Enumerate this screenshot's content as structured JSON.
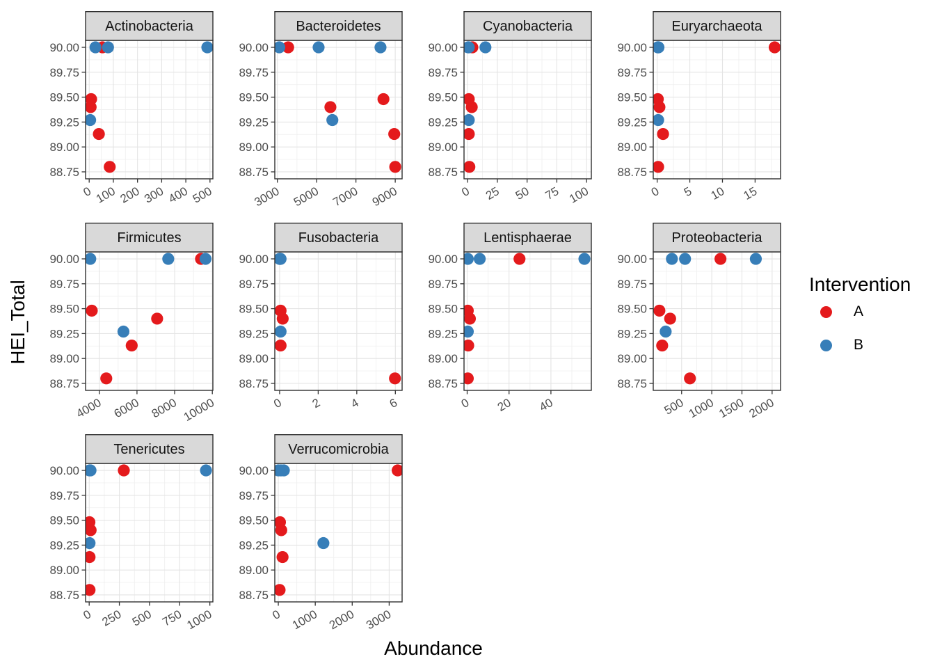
{
  "figure": {
    "colors": {
      "A": "#E41A1C",
      "B": "#377EB8",
      "strip_bg": "#D9D9D9",
      "strip_border": "#2F2F2F",
      "panel_bg": "#FFFFFF",
      "panel_border": "#2F2F2F",
      "grid_major": "#E4E4E4",
      "grid_minor": "#F0F0F0",
      "tick_mark": "#333333",
      "tick_text": "#4D4D4D",
      "title_text": "#000000"
    }
  },
  "chart_data": {
    "type": "scatter",
    "x_label": "Abundance",
    "y_label": "HEI_Total",
    "grid": "on",
    "legend": {
      "title": "Intervention",
      "position": "right",
      "entries": [
        {
          "label": "A",
          "color": "#E41A1C"
        },
        {
          "label": "B",
          "color": "#377EB8"
        }
      ]
    },
    "y_ticks": [
      90.0,
      89.75,
      89.5,
      89.25,
      89.0,
      88.75
    ],
    "y_domain": [
      88.68,
      90.07
    ],
    "facets": [
      {
        "name": "Actinobacteria",
        "x_ticks": [
          0,
          100,
          200,
          300,
          400,
          500
        ],
        "x_domain": [
          -15,
          512
        ],
        "points": [
          {
            "g": "A",
            "x": 55,
            "y": 90.0
          },
          {
            "g": "A",
            "x": 8,
            "y": 89.48
          },
          {
            "g": "A",
            "x": 6,
            "y": 89.4
          },
          {
            "g": "A",
            "x": 40,
            "y": 89.13
          },
          {
            "g": "A",
            "x": 85,
            "y": 88.8
          },
          {
            "g": "B",
            "x": 26,
            "y": 90.0
          },
          {
            "g": "B",
            "x": 78,
            "y": 90.0
          },
          {
            "g": "B",
            "x": 489,
            "y": 90.0
          },
          {
            "g": "B",
            "x": 4,
            "y": 89.27
          }
        ]
      },
      {
        "name": "Bacteroidetes",
        "x_ticks": [
          3000,
          5000,
          7000,
          9000
        ],
        "x_domain": [
          2870,
          9350
        ],
        "points": [
          {
            "g": "A",
            "x": 3550,
            "y": 90.0
          },
          {
            "g": "A",
            "x": 8400,
            "y": 89.48
          },
          {
            "g": "A",
            "x": 5700,
            "y": 89.4
          },
          {
            "g": "A",
            "x": 8950,
            "y": 89.13
          },
          {
            "g": "A",
            "x": 9000,
            "y": 88.8
          },
          {
            "g": "B",
            "x": 3100,
            "y": 90.0
          },
          {
            "g": "B",
            "x": 5100,
            "y": 90.0
          },
          {
            "g": "B",
            "x": 8250,
            "y": 90.0
          },
          {
            "g": "B",
            "x": 5800,
            "y": 89.27
          }
        ]
      },
      {
        "name": "Cyanobacteria",
        "x_ticks": [
          0,
          25,
          50,
          75,
          100
        ],
        "x_domain": [
          -3,
          104
        ],
        "points": [
          {
            "g": "A",
            "x": 4,
            "y": 90.0
          },
          {
            "g": "A",
            "x": 1,
            "y": 89.48
          },
          {
            "g": "A",
            "x": 3.5,
            "y": 89.4
          },
          {
            "g": "A",
            "x": 1,
            "y": 89.13
          },
          {
            "g": "A",
            "x": 1.5,
            "y": 88.8
          },
          {
            "g": "B",
            "x": 0.5,
            "y": 90.0
          },
          {
            "g": "B",
            "x": 1,
            "y": 90.0
          },
          {
            "g": "B",
            "x": 15,
            "y": 90.0
          },
          {
            "g": "B",
            "x": 1,
            "y": 89.27
          }
        ]
      },
      {
        "name": "Euryarchaeota",
        "x_ticks": [
          0,
          5,
          10,
          15
        ],
        "x_domain": [
          -0.6,
          18.9
        ],
        "points": [
          {
            "g": "A",
            "x": 18,
            "y": 90.0
          },
          {
            "g": "A",
            "x": 0.1,
            "y": 89.48
          },
          {
            "g": "A",
            "x": 0.35,
            "y": 89.4
          },
          {
            "g": "A",
            "x": 0.9,
            "y": 89.13
          },
          {
            "g": "A",
            "x": 0.15,
            "y": 88.8
          },
          {
            "g": "B",
            "x": 0.1,
            "y": 90.0
          },
          {
            "g": "B",
            "x": 0.15,
            "y": 90.0
          },
          {
            "g": "B",
            "x": 0.2,
            "y": 90.0
          },
          {
            "g": "B",
            "x": 0.15,
            "y": 89.27
          }
        ]
      },
      {
        "name": "Firmicutes",
        "x_ticks": [
          4000,
          6000,
          8000,
          10000
        ],
        "x_domain": [
          3270,
          10030
        ],
        "points": [
          {
            "g": "A",
            "x": 9400,
            "y": 90.0
          },
          {
            "g": "A",
            "x": 3600,
            "y": 89.48
          },
          {
            "g": "A",
            "x": 7070,
            "y": 89.4
          },
          {
            "g": "A",
            "x": 5720,
            "y": 89.13
          },
          {
            "g": "A",
            "x": 4370,
            "y": 88.8
          },
          {
            "g": "B",
            "x": 3520,
            "y": 90.0
          },
          {
            "g": "B",
            "x": 7660,
            "y": 90.0
          },
          {
            "g": "B",
            "x": 9640,
            "y": 90.0
          },
          {
            "g": "B",
            "x": 5280,
            "y": 89.27
          }
        ]
      },
      {
        "name": "Fusobacteria",
        "x_ticks": [
          0,
          2,
          4,
          6
        ],
        "x_domain": [
          -0.25,
          6.35
        ],
        "points": [
          {
            "g": "A",
            "x": 0.02,
            "y": 90.0
          },
          {
            "g": "A",
            "x": 0.05,
            "y": 89.48
          },
          {
            "g": "A",
            "x": 0.16,
            "y": 89.4
          },
          {
            "g": "A",
            "x": 0.05,
            "y": 89.13
          },
          {
            "g": "A",
            "x": 5.98,
            "y": 88.8
          },
          {
            "g": "B",
            "x": 0,
            "y": 90.0
          },
          {
            "g": "B",
            "x": 0.02,
            "y": 90.0
          },
          {
            "g": "B",
            "x": 0.05,
            "y": 90.0
          },
          {
            "g": "B",
            "x": 0.05,
            "y": 89.27
          }
        ]
      },
      {
        "name": "Lentisphaerae",
        "x_ticks": [
          0,
          20,
          40
        ],
        "x_domain": [
          -1.5,
          59.3
        ],
        "points": [
          {
            "g": "A",
            "x": 25,
            "y": 90.0
          },
          {
            "g": "A",
            "x": 0.3,
            "y": 89.48
          },
          {
            "g": "A",
            "x": 1.3,
            "y": 89.4
          },
          {
            "g": "A",
            "x": 0.5,
            "y": 89.13
          },
          {
            "g": "A",
            "x": 0.3,
            "y": 88.8
          },
          {
            "g": "B",
            "x": 0.3,
            "y": 90.0
          },
          {
            "g": "B",
            "x": 6,
            "y": 90.0
          },
          {
            "g": "B",
            "x": 56,
            "y": 90.0
          },
          {
            "g": "B",
            "x": 0.3,
            "y": 89.27
          }
        ]
      },
      {
        "name": "Proteobacteria",
        "x_ticks": [
          500,
          1000,
          1500,
          2000
        ],
        "x_domain": [
          30,
          2140
        ],
        "points": [
          {
            "g": "A",
            "x": 1144,
            "y": 90.0
          },
          {
            "g": "A",
            "x": 132,
            "y": 89.48
          },
          {
            "g": "A",
            "x": 310,
            "y": 89.4
          },
          {
            "g": "A",
            "x": 178,
            "y": 89.13
          },
          {
            "g": "A",
            "x": 638,
            "y": 88.8
          },
          {
            "g": "B",
            "x": 339,
            "y": 90.0
          },
          {
            "g": "B",
            "x": 557,
            "y": 90.0
          },
          {
            "g": "B",
            "x": 1730,
            "y": 90.0
          },
          {
            "g": "B",
            "x": 236,
            "y": 89.27
          }
        ]
      },
      {
        "name": "Tenericutes",
        "x_ticks": [
          0,
          250,
          500,
          750,
          1000
        ],
        "x_domain": [
          -30,
          1025
        ],
        "points": [
          {
            "g": "A",
            "x": 287,
            "y": 90.0
          },
          {
            "g": "A",
            "x": 2,
            "y": 89.48
          },
          {
            "g": "A",
            "x": 12,
            "y": 89.4
          },
          {
            "g": "A",
            "x": 3,
            "y": 89.13
          },
          {
            "g": "A",
            "x": 3,
            "y": 88.8
          },
          {
            "g": "B",
            "x": 2,
            "y": 90.0
          },
          {
            "g": "B",
            "x": 11,
            "y": 90.0
          },
          {
            "g": "B",
            "x": 968,
            "y": 90.0
          },
          {
            "g": "B",
            "x": 3,
            "y": 89.27
          }
        ]
      },
      {
        "name": "Verrucomicrobia",
        "x_ticks": [
          0,
          1000,
          2000,
          3000
        ],
        "x_domain": [
          -95,
          3350
        ],
        "points": [
          {
            "g": "A",
            "x": 3230,
            "y": 90.0
          },
          {
            "g": "A",
            "x": 45,
            "y": 89.48
          },
          {
            "g": "A",
            "x": 80,
            "y": 89.4
          },
          {
            "g": "A",
            "x": 115,
            "y": 89.13
          },
          {
            "g": "A",
            "x": 35,
            "y": 88.8
          },
          {
            "g": "B",
            "x": 0,
            "y": 90.0
          },
          {
            "g": "B",
            "x": 70,
            "y": 90.0
          },
          {
            "g": "B",
            "x": 150,
            "y": 90.0
          },
          {
            "g": "B",
            "x": 1220,
            "y": 89.27
          }
        ]
      }
    ]
  }
}
